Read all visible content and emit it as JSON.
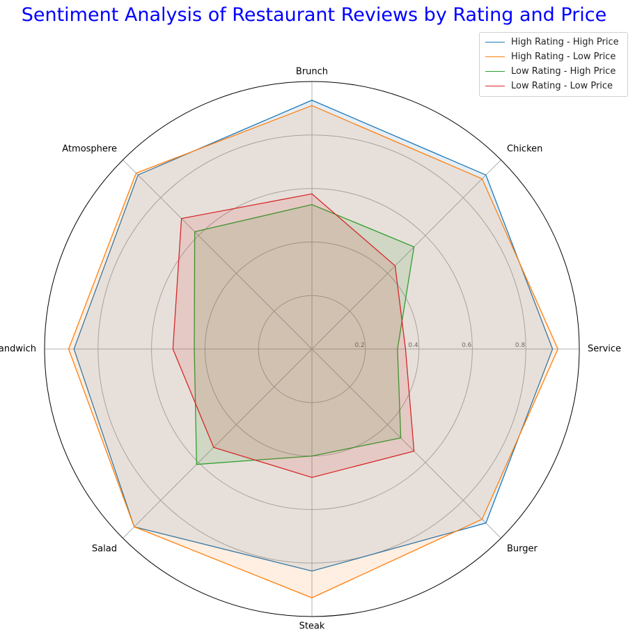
{
  "chart_data": {
    "type": "radar",
    "title": "Sentiment Analysis of Restaurant Reviews by Rating and Price",
    "categories": [
      "Service",
      "Chicken",
      "Brunch",
      "Atmosphere",
      "Sandwich",
      "Salad",
      "Steak",
      "Burger"
    ],
    "radial_ticks": [
      0.2,
      0.4,
      0.6,
      0.8
    ],
    "rlim": [
      0,
      1.0
    ],
    "grid": true,
    "legend_position": "top-right",
    "series": [
      {
        "name": "High Rating - High Price",
        "color": "#1f77b4",
        "values": [
          0.9,
          0.92,
          0.93,
          0.92,
          0.89,
          0.94,
          0.83,
          0.92
        ]
      },
      {
        "name": "High Rating - Low Price",
        "color": "#ff7f0e",
        "values": [
          0.92,
          0.9,
          0.91,
          0.93,
          0.91,
          0.94,
          0.93,
          0.9
        ]
      },
      {
        "name": "Low Rating - High Price",
        "color": "#2ca02c",
        "values": [
          0.32,
          0.54,
          0.54,
          0.62,
          0.44,
          0.61,
          0.4,
          0.47
        ]
      },
      {
        "name": "Low Rating - Low Price",
        "color": "#d62728",
        "values": [
          0.35,
          0.44,
          0.58,
          0.69,
          0.52,
          0.52,
          0.48,
          0.54
        ]
      }
    ]
  }
}
